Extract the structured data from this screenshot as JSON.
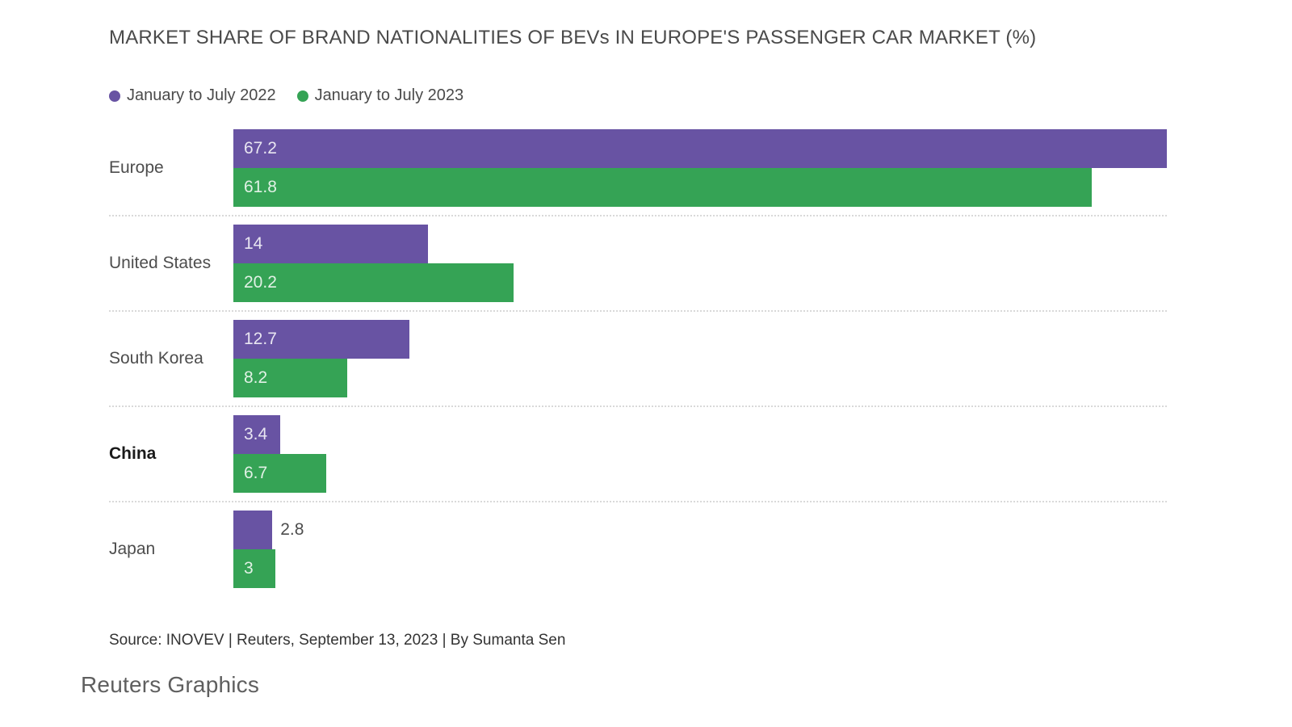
{
  "chart_data": {
    "type": "bar",
    "orientation": "horizontal",
    "title": "MARKET SHARE OF BRAND NATIONALITIES OF BEVs IN EUROPE'S PASSENGER CAR MARKET (%)",
    "categories": [
      "Europe",
      "United States",
      "South Korea",
      "China",
      "Japan"
    ],
    "bold_categories": [
      "China"
    ],
    "series": [
      {
        "name": "January to July 2022",
        "color": "#6853a3",
        "values": [
          67.2,
          14,
          12.7,
          3.4,
          2.8
        ]
      },
      {
        "name": "January to July 2023",
        "color": "#35a355",
        "values": [
          61.8,
          20.2,
          8.2,
          6.7,
          3
        ]
      }
    ],
    "value_labels": [
      [
        "67.2",
        "61.8"
      ],
      [
        "14",
        "20.2"
      ],
      [
        "12.7",
        "8.2"
      ],
      [
        "3.4",
        "6.7"
      ],
      [
        "2.8",
        "3"
      ]
    ],
    "label_outside": [
      [
        false,
        false
      ],
      [
        false,
        false
      ],
      [
        false,
        false
      ],
      [
        false,
        false
      ],
      [
        true,
        false
      ]
    ],
    "xmax": 67.2,
    "xlabel": "",
    "ylabel": "",
    "legend_position": "top-left",
    "grid": "dotted-row-separators",
    "value_label_color_inside": "rgba(255,255,255,0.85)",
    "value_label_color_outside": "#4d4d4d",
    "separator_color": "#d9d9d9"
  },
  "source": "Source: INOVEV | Reuters, September 13, 2023 | By Sumanta Sen",
  "footer": {
    "brand": "Reuters Graphics"
  }
}
